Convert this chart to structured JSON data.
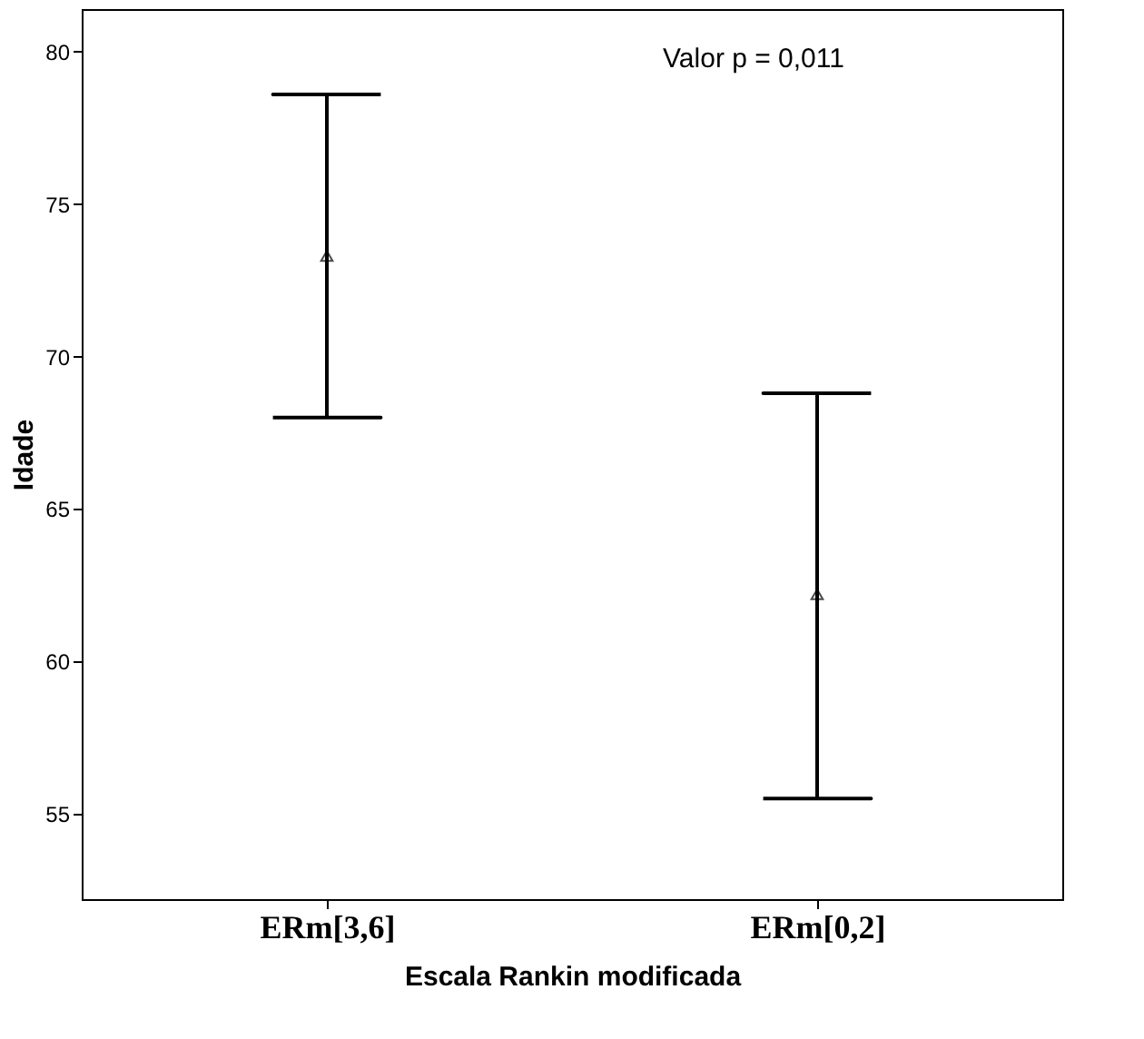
{
  "chart_data": {
    "type": "scatter",
    "xlabel": "Escala Rankin modificada",
    "ylabel": "Idade",
    "categories": [
      "ERm[3,6]",
      "ERm[0,2]"
    ],
    "values": [
      73.3,
      62.2
    ],
    "errors": [
      [
        68.0,
        78.6
      ],
      [
        55.5,
        68.8
      ]
    ],
    "color": "#000000",
    "marker": "triangle",
    "grid": false,
    "ylim": [
      52.2,
      81.4
    ],
    "yticks": [
      55,
      60,
      65,
      70,
      75,
      80
    ],
    "annotations": [
      "Valor p = 0,011"
    ]
  }
}
